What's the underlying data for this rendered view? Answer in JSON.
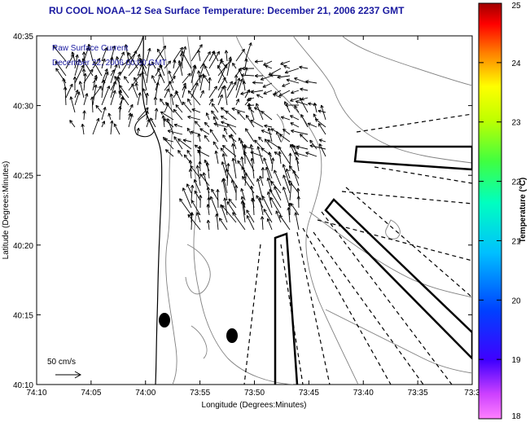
{
  "title": "RU COOL  NOAA–12  Sea Surface Temperature:  December 21, 2006 2237 GMT",
  "annotations": {
    "line1": "Raw Surface Current",
    "line2": "December 22, 2006 00:00 GMT",
    "scale_label": "50 cm/s"
  },
  "axes": {
    "xlabel": "Longitude (Degrees:Minutes)",
    "ylabel": "Latitude (Degrees:Minutes)",
    "x_ticks": [
      "74:10",
      "74:05",
      "74:00",
      "73:55",
      "73:50",
      "73:45",
      "73:40",
      "73:35",
      "73:3"
    ],
    "y_ticks": [
      "40:35",
      "40:30",
      "40:25",
      "40:20",
      "40:15",
      "40:10"
    ]
  },
  "colorbar": {
    "label": "Temperature (°C)",
    "min": 18,
    "max": 25,
    "ticks": [
      "25",
      "24",
      "23",
      "22",
      "21",
      "20",
      "19",
      "18"
    ]
  },
  "colors": {
    "title": "#1a1aa0",
    "annotation": "#1a1aa0"
  }
}
